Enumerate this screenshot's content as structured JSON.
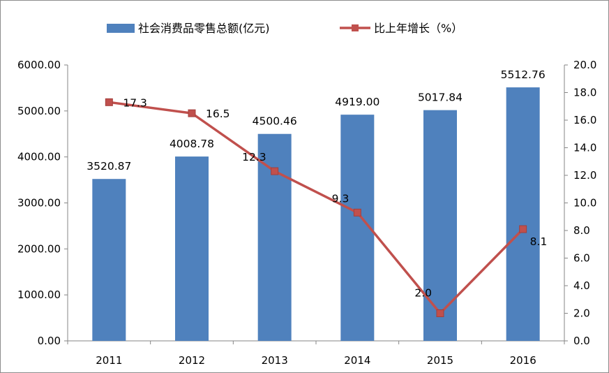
{
  "chart_data": {
    "type": "bar",
    "categories": [
      "2011",
      "2012",
      "2013",
      "2014",
      "2015",
      "2016"
    ],
    "series": [
      {
        "name": "社会消费品零售总额(亿元)",
        "type": "bar",
        "axis": "left",
        "color": "#4f81bd",
        "values": [
          3520.87,
          4008.78,
          4500.46,
          4919.0,
          5017.84,
          5512.76
        ],
        "labels": [
          "3520.87",
          "4008.78",
          "4500.46",
          "4919.00",
          "5017.84",
          "5512.76"
        ]
      },
      {
        "name": "比上年增长（%）",
        "type": "line",
        "axis": "right",
        "color": "#c0504d",
        "marker": "square",
        "values": [
          17.3,
          16.5,
          12.3,
          9.3,
          2.0,
          8.1
        ],
        "labels": [
          "17.3",
          "16.5",
          "12.3",
          "9.3",
          "2.0",
          "8.1"
        ]
      }
    ],
    "y_left": {
      "lim": [
        0,
        6000
      ],
      "ticks": [
        "0.00",
        "1000.00",
        "2000.00",
        "3000.00",
        "4000.00",
        "5000.00",
        "6000.00"
      ]
    },
    "y_right": {
      "lim": [
        0,
        20
      ],
      "ticks": [
        "0.0",
        "2.0",
        "4.0",
        "6.0",
        "8.0",
        "10.0",
        "12.0",
        "14.0",
        "16.0",
        "18.0",
        "20.0"
      ]
    },
    "legend": "top",
    "grid": false
  }
}
